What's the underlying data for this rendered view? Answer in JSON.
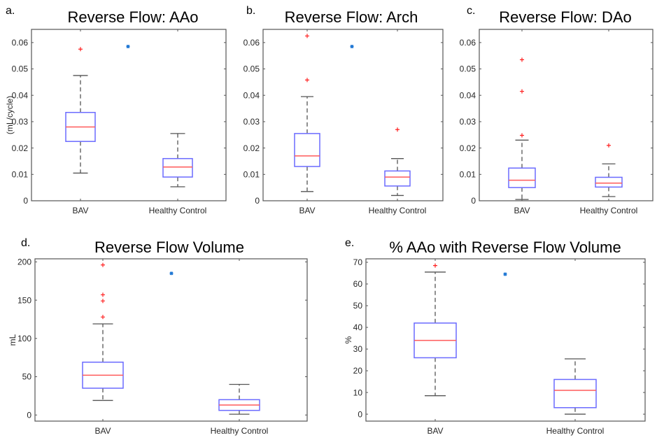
{
  "colors": {
    "box": "#6b6bff",
    "median": "#ff5a5a",
    "whisker": "#555555",
    "outlier": "#ff2020",
    "marker": "#1f77d4",
    "axis": "#555555"
  },
  "chart_data": [
    {
      "type": "box",
      "panel_label": "a.",
      "title": "Reverse Flow: AAo",
      "ylabel": "(mL/cycle)",
      "categories": [
        "BAV",
        "Healthy Control"
      ],
      "ylim": [
        0,
        0.065
      ],
      "yticks": [
        0,
        0.01,
        0.02,
        0.03,
        0.04,
        0.05,
        0.06
      ],
      "ytick_labels": [
        "0",
        "0.01",
        "0.02",
        "0.03",
        "0.04",
        "0.05",
        "0.06"
      ],
      "boxes": [
        {
          "whisker_low": 0.0105,
          "q1": 0.0225,
          "median": 0.028,
          "q3": 0.0335,
          "whisker_high": 0.0475,
          "outliers": [
            0.0575
          ]
        },
        {
          "whisker_low": 0.0053,
          "q1": 0.009,
          "median": 0.0128,
          "q3": 0.016,
          "whisker_high": 0.0255,
          "outliers": []
        }
      ],
      "significance_marker": {
        "y": 0.0585
      }
    },
    {
      "type": "box",
      "panel_label": "b.",
      "title": "Reverse Flow: Arch",
      "ylabel": "",
      "categories": [
        "BAV",
        "Healthy Control"
      ],
      "ylim": [
        0,
        0.065
      ],
      "yticks": [
        0,
        0.01,
        0.02,
        0.03,
        0.04,
        0.05,
        0.06
      ],
      "ytick_labels": [
        "0",
        "0.01",
        "0.02",
        "0.03",
        "0.04",
        "0.05",
        "0.06"
      ],
      "boxes": [
        {
          "whisker_low": 0.0035,
          "q1": 0.013,
          "median": 0.017,
          "q3": 0.0255,
          "whisker_high": 0.0395,
          "outliers": [
            0.0458,
            0.0625
          ]
        },
        {
          "whisker_low": 0.002,
          "q1": 0.0056,
          "median": 0.009,
          "q3": 0.0113,
          "whisker_high": 0.016,
          "outliers": [
            0.027
          ]
        }
      ],
      "significance_marker": {
        "y": 0.0585
      }
    },
    {
      "type": "box",
      "panel_label": "c.",
      "title": "Reverse Flow: DAo",
      "ylabel": "",
      "categories": [
        "BAV",
        "Healthy Control"
      ],
      "ylim": [
        0,
        0.065
      ],
      "yticks": [
        0,
        0.01,
        0.02,
        0.03,
        0.04,
        0.05,
        0.06
      ],
      "ytick_labels": [
        "0",
        "0.01",
        "0.02",
        "0.03",
        "0.04",
        "0.05",
        "0.06"
      ],
      "boxes": [
        {
          "whisker_low": 0.0005,
          "q1": 0.005,
          "median": 0.0078,
          "q3": 0.0124,
          "whisker_high": 0.023,
          "outliers": [
            0.0248,
            0.0415,
            0.0535
          ]
        },
        {
          "whisker_low": 0.0016,
          "q1": 0.0052,
          "median": 0.0067,
          "q3": 0.0089,
          "whisker_high": 0.014,
          "outliers": [
            0.021
          ]
        }
      ],
      "significance_marker": null
    },
    {
      "type": "box",
      "panel_label": "d.",
      "title": "Reverse Flow Volume",
      "ylabel": "mL",
      "categories": [
        "BAV",
        "Healthy Control"
      ],
      "ylim": [
        -8,
        204
      ],
      "yticks": [
        0,
        50,
        100,
        150,
        200
      ],
      "ytick_labels": [
        "0",
        "50",
        "100",
        "150",
        "200"
      ],
      "boxes": [
        {
          "whisker_low": 19,
          "q1": 35,
          "median": 52,
          "q3": 69,
          "whisker_high": 119,
          "outliers": [
            128,
            149,
            157,
            196
          ]
        },
        {
          "whisker_low": 1,
          "q1": 6,
          "median": 13,
          "q3": 20,
          "whisker_high": 40,
          "outliers": []
        }
      ],
      "significance_marker": {
        "y": 185
      }
    },
    {
      "type": "box",
      "panel_label": "e.",
      "title": "% AAo with Reverse Flow Volume",
      "ylabel": "%",
      "categories": [
        "BAV",
        "Healthy Control"
      ],
      "ylim": [
        -3.2,
        71.6
      ],
      "yticks": [
        0,
        10,
        20,
        30,
        40,
        50,
        60,
        70
      ],
      "ytick_labels": [
        "0",
        "10",
        "20",
        "30",
        "40",
        "50",
        "60",
        "70"
      ],
      "boxes": [
        {
          "whisker_low": 8.5,
          "q1": 26,
          "median": 34,
          "q3": 42,
          "whisker_high": 65.5,
          "outliers": [
            68.5
          ]
        },
        {
          "whisker_low": 0,
          "q1": 3,
          "median": 11,
          "q3": 16,
          "whisker_high": 25.5,
          "outliers": []
        }
      ],
      "significance_marker": {
        "y": 64.5
      }
    }
  ]
}
